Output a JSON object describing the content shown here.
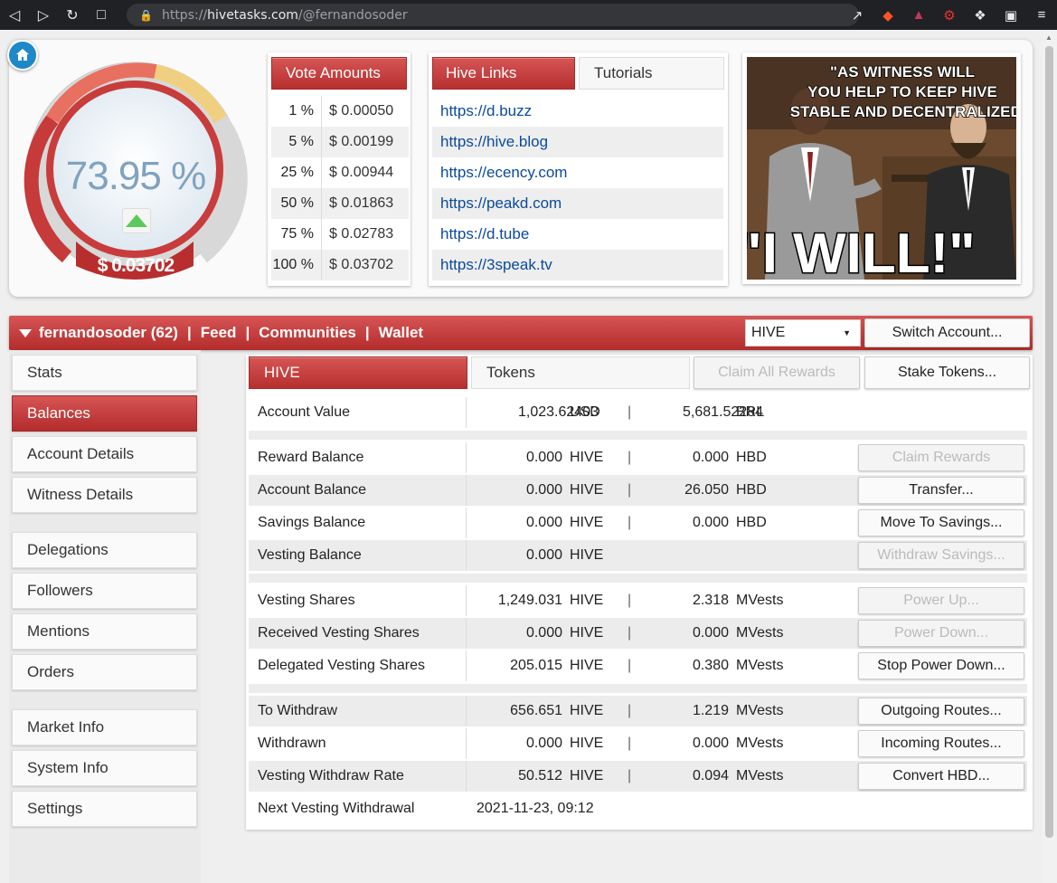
{
  "browser": {
    "url_prefix": "https://",
    "url_host": "hivetasks.com",
    "url_path": "/@fernandosoder"
  },
  "gauge": {
    "percent_label": "73.95 %",
    "percent": 73.95,
    "value_label": "$ 0.03702"
  },
  "vote_amounts": {
    "title": "Vote Amounts",
    "rows": [
      {
        "pct": "1 %",
        "usd": "$ 0.00050"
      },
      {
        "pct": "5 %",
        "usd": "$ 0.00199"
      },
      {
        "pct": "25 %",
        "usd": "$ 0.00944"
      },
      {
        "pct": "50 %",
        "usd": "$ 0.01863"
      },
      {
        "pct": "75 %",
        "usd": "$ 0.02783"
      },
      {
        "pct": "100 %",
        "usd": "$ 0.03702"
      }
    ]
  },
  "hive_links": {
    "tab_active": "Hive Links",
    "tab_other": "Tutorials",
    "links": [
      "https://d.buzz",
      "https://hive.blog",
      "https://ecency.com",
      "https://peakd.com",
      "https://d.tube",
      "https://3speak.tv"
    ]
  },
  "meme": {
    "caption_top": "\"AS WITNESS WILL YOU HELP TO KEEP HIVE STABLE AND DECENTRALIZED?\"",
    "caption_bottom": "\"I WILL!\""
  },
  "account_bar": {
    "account": "fernandosoder (62)",
    "sep": "|",
    "feed": "Feed",
    "communities": "Communities",
    "wallet": "Wallet",
    "token_select": "HIVE",
    "switch_account": "Switch Account..."
  },
  "sidebar": {
    "items": [
      "Stats",
      "Balances",
      "Account Details",
      "Witness Details",
      "Delegations",
      "Followers",
      "Mentions",
      "Orders",
      "Market Info",
      "System Info",
      "Settings"
    ]
  },
  "tabs": {
    "hive": "HIVE",
    "tokens": "Tokens",
    "claim_all": "Claim All Rewards",
    "stake_tokens": "Stake Tokens..."
  },
  "balances": {
    "account_value": {
      "label": "Account Value",
      "v1": "1,023.62403",
      "u1": "USD",
      "v2": "5,681.52284",
      "u2": "BRL"
    },
    "rows": [
      {
        "label": "Reward Balance",
        "v1": "0.000",
        "u1": "HIVE",
        "v2": "0.000",
        "u2": "HBD",
        "action": "Claim Rewards"
      },
      {
        "label": "Account Balance",
        "v1": "0.000",
        "u1": "HIVE",
        "v2": "26.050",
        "u2": "HBD",
        "action": "Transfer..."
      },
      {
        "label": "Savings Balance",
        "v1": "0.000",
        "u1": "HIVE",
        "v2": "0.000",
        "u2": "HBD",
        "action": "Move To Savings..."
      },
      {
        "label": "Vesting Balance",
        "v1": "0.000",
        "u1": "HIVE",
        "v2": "",
        "u2": "",
        "action": "Withdraw Savings..."
      },
      {
        "label": "Vesting Shares",
        "v1": "1,249.031",
        "u1": "HIVE",
        "v2": "2.318",
        "u2": "MVests",
        "action": "Power Up..."
      },
      {
        "label": "Received Vesting Shares",
        "v1": "0.000",
        "u1": "HIVE",
        "v2": "0.000",
        "u2": "MVests",
        "action": "Power Down..."
      },
      {
        "label": "Delegated Vesting Shares",
        "v1": "205.015",
        "u1": "HIVE",
        "v2": "0.380",
        "u2": "MVests",
        "action": "Stop Power Down..."
      },
      {
        "label": "To Withdraw",
        "v1": "656.651",
        "u1": "HIVE",
        "v2": "1.219",
        "u2": "MVests",
        "action": "Outgoing Routes..."
      },
      {
        "label": "Withdrawn",
        "v1": "0.000",
        "u1": "HIVE",
        "v2": "0.000",
        "u2": "MVests",
        "action": "Incoming Routes..."
      },
      {
        "label": "Vesting Withdraw Rate",
        "v1": "50.512",
        "u1": "HIVE",
        "v2": "0.094",
        "u2": "MVests",
        "action": "Convert HBD..."
      }
    ],
    "next_withdrawal": {
      "label": "Next Vesting Withdrawal",
      "value": "2021-11-23, 09:12"
    }
  }
}
